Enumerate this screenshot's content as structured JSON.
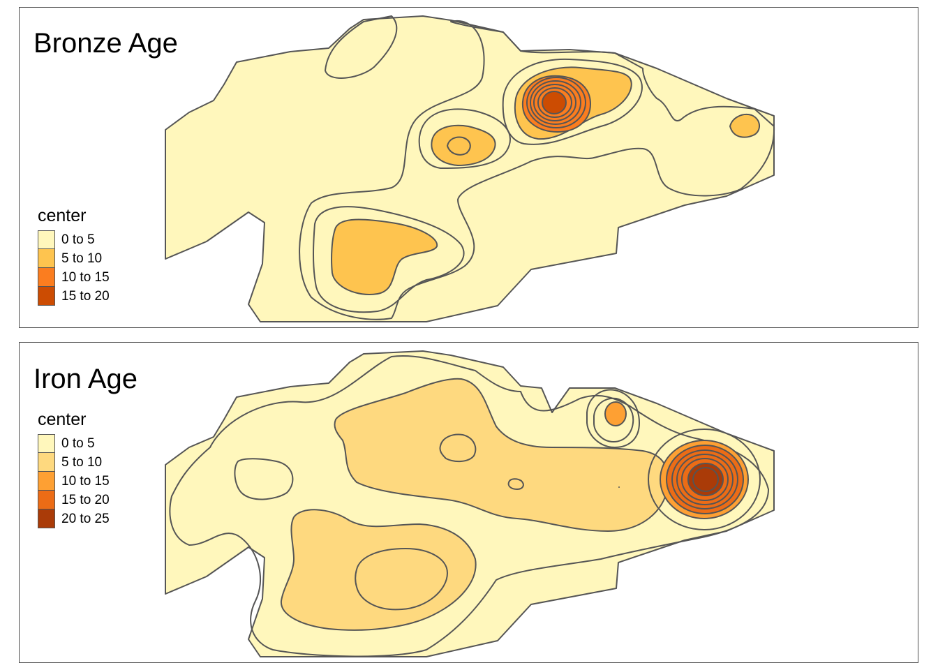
{
  "panels": [
    {
      "title": "Bronze Age",
      "legend": {
        "title": "center",
        "items": [
          {
            "label": "0 to 5",
            "color": "#fff7bc"
          },
          {
            "label": "5 to 10",
            "color": "#fec44f"
          },
          {
            "label": "10 to 15",
            "color": "#fb7d1f"
          },
          {
            "label": "15 to 20",
            "color": "#cc4c02"
          }
        ]
      }
    },
    {
      "title": "Iron Age",
      "legend": {
        "title": "center",
        "items": [
          {
            "label": "0 to 5",
            "color": "#fff7bc"
          },
          {
            "label": "5 to 10",
            "color": "#fed97f"
          },
          {
            "label": "10 to 15",
            "color": "#fea033"
          },
          {
            "label": "15 to 20",
            "color": "#ec6c16"
          },
          {
            "label": "20 to 25",
            "color": "#aa3b08"
          }
        ]
      }
    }
  ],
  "colors": {
    "frame": "#4d4d4d",
    "contour_line": "#555555",
    "background": "#ffffff"
  }
}
